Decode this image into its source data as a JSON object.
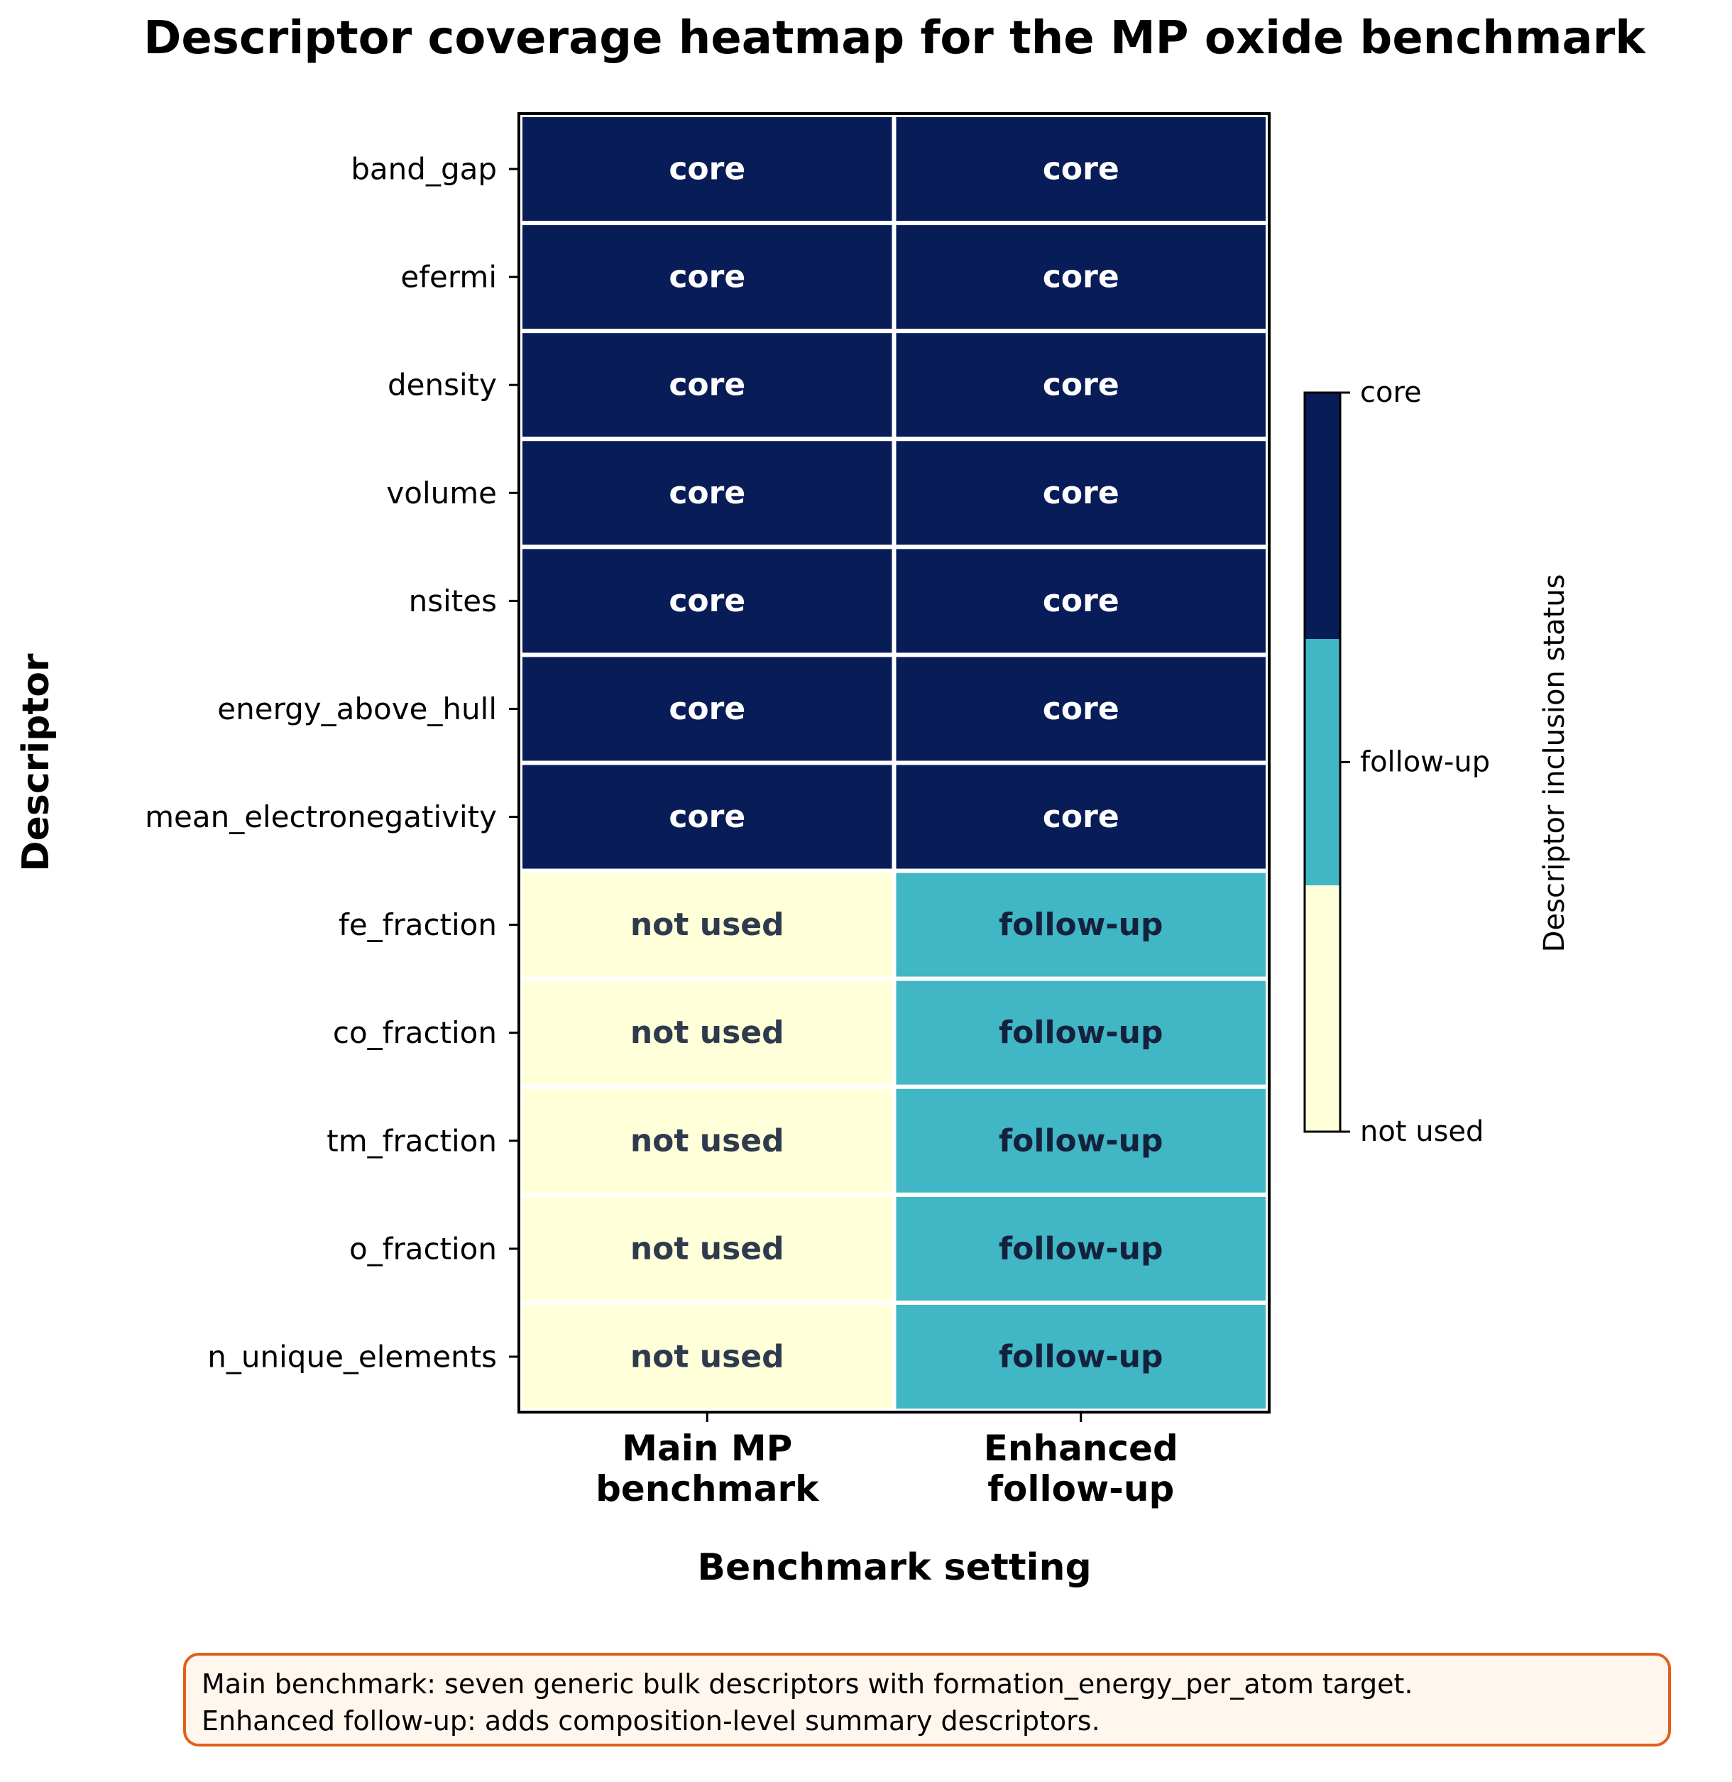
{
  "chart_data": {
    "type": "heatmap",
    "title": "Descriptor coverage heatmap for the MP oxide benchmark",
    "xlabel": "Benchmark setting",
    "ylabel": "Descriptor",
    "columns": [
      {
        "line1": "Main MP",
        "line2": "benchmark"
      },
      {
        "line1": "Enhanced",
        "line2": "follow-up"
      }
    ],
    "rows": [
      "band_gap",
      "efermi",
      "density",
      "volume",
      "nsites",
      "energy_above_hull",
      "mean_electronegativity",
      "fe_fraction",
      "co_fraction",
      "tm_fraction",
      "o_fraction",
      "n_unique_elements"
    ],
    "values": [
      [
        2,
        2
      ],
      [
        2,
        2
      ],
      [
        2,
        2
      ],
      [
        2,
        2
      ],
      [
        2,
        2
      ],
      [
        2,
        2
      ],
      [
        2,
        2
      ],
      [
        0,
        1
      ],
      [
        0,
        1
      ],
      [
        0,
        1
      ],
      [
        0,
        1
      ],
      [
        0,
        1
      ]
    ],
    "levels": [
      {
        "value": 0,
        "label": "not used",
        "color": "#ffffd9",
        "text_color": "#2e3a4d"
      },
      {
        "value": 1,
        "label": "follow-up",
        "color": "#41b6c4",
        "text_color": "#14213d"
      },
      {
        "value": 2,
        "label": "core",
        "color": "#081d58",
        "text_color": "#ffffff"
      }
    ],
    "colorbar": {
      "label": "Descriptor inclusion status",
      "range": [
        0,
        2
      ]
    },
    "grid": false
  },
  "note": {
    "lines": [
      "Main benchmark: seven generic bulk descriptors with formation_energy_per_atom target.",
      "Enhanced follow-up: adds composition-level summary descriptors."
    ],
    "border_color": "#e0601b",
    "background_color": "#fff6ee"
  }
}
